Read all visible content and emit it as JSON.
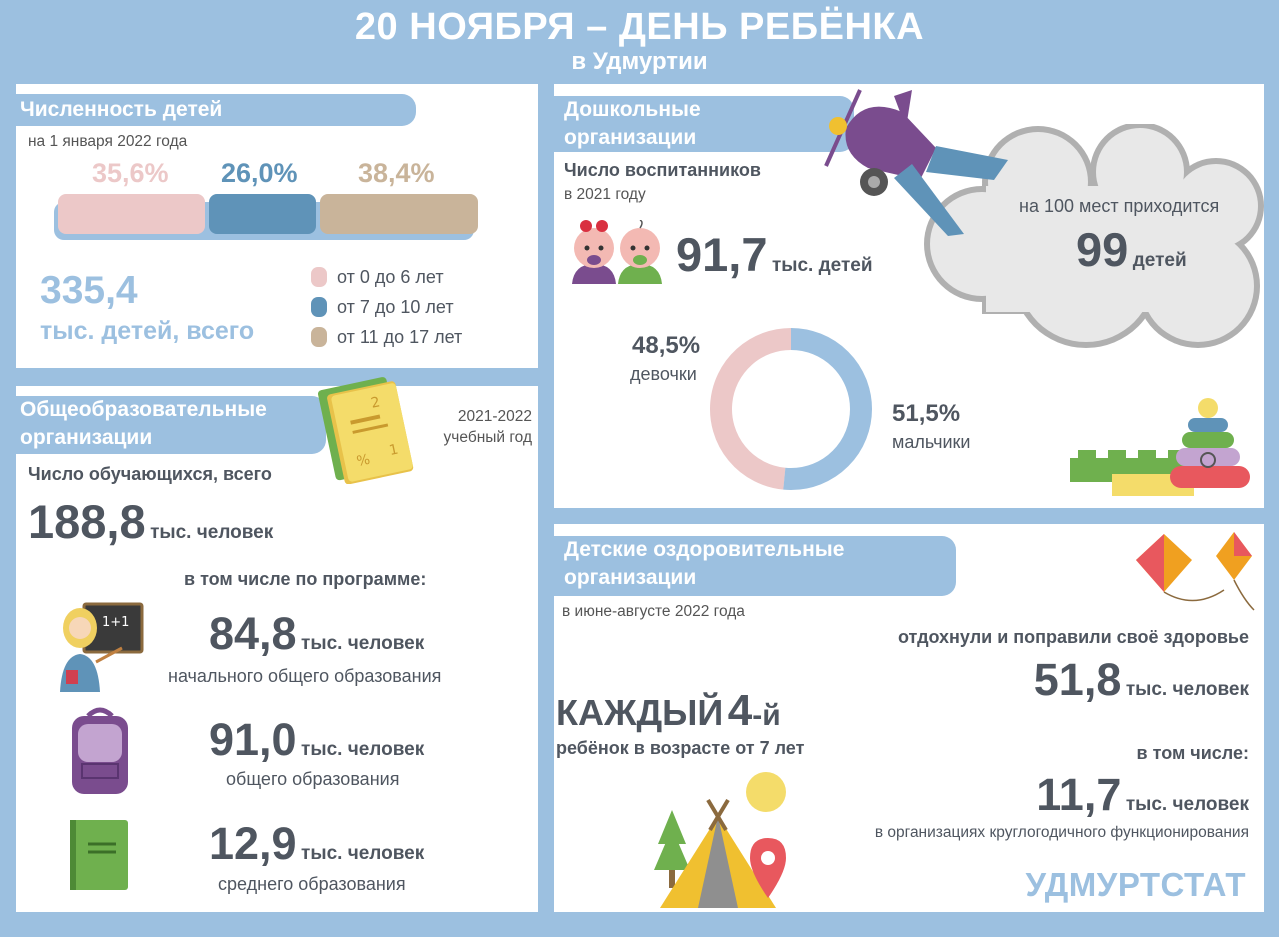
{
  "header": {
    "title": "20 НОЯБРЯ – ДЕНЬ РЕБЁНКА",
    "subtitle": "в Удмуртии"
  },
  "children_count": {
    "heading": "Численность детей",
    "date": "на 1 января 2022 года",
    "total_value": "335,4",
    "total_label": "тыс. детей, всего",
    "segments": [
      {
        "pct_label": "35,6%",
        "pct": 35.6,
        "color": "#ecc8c8",
        "legend": "от 0 до 6 лет"
      },
      {
        "pct_label": "26,0%",
        "pct": 26.0,
        "color": "#5f93b8",
        "legend": "от 7 до 10 лет"
      },
      {
        "pct_label": "38,4%",
        "pct": 38.4,
        "color": "#c9b49a",
        "legend": "от 11 до 17 лет"
      }
    ]
  },
  "schools": {
    "heading_line1": "Общеобразовательные",
    "heading_line2": "организации",
    "year_line1": "2021-2022",
    "year_line2": "учебный год",
    "students_label": "Число обучающихся, всего",
    "total_value": "188,8",
    "total_unit": "тыс. человек",
    "programs_label": "в том числе по программе:",
    "board_text": "1+1",
    "programs": [
      {
        "value": "84,8",
        "unit": "тыс. человек",
        "label": "начального общего образования"
      },
      {
        "value": "91,0",
        "unit": "тыс. человек",
        "label": "общего образования"
      },
      {
        "value": "12,9",
        "unit": "тыс. человек",
        "label": "среднего образования"
      }
    ]
  },
  "preschool": {
    "heading_line1": "Дошкольные",
    "heading_line2": "организации",
    "pupils_label": "Число воспитанников",
    "year": "в 2021 году",
    "value": "91,7",
    "unit": "тыс. детей",
    "places_label": "на 100 мест приходится",
    "places_value": "99",
    "places_unit": "детей",
    "girls_pct_label": "48,5%",
    "girls_label": "девочки",
    "boys_pct_label": "51,5%",
    "boys_label": "мальчики",
    "girls_pct": 48.5,
    "boys_pct": 51.5,
    "girls_color": "#ecc8c8",
    "boys_color": "#9cc0e0"
  },
  "health": {
    "heading_line1": "Детские оздоровительные",
    "heading_line2": "организации",
    "period": "в июне-августе 2022 года",
    "rested_label": "отдохнули  и поправили своё здоровье",
    "rested_value": "51,8",
    "rested_unit": "тыс. человек",
    "every_word": "КАЖДЫЙ",
    "every_num": "4",
    "every_suffix": "-й",
    "every_desc": "ребёнок в возрасте от 7 лет",
    "including_label": "в том числе:",
    "yearround_value": "11,7",
    "yearround_unit": "тыс. человек",
    "yearround_label": "в организациях круглогодичного функционирования"
  },
  "footer": {
    "brand": "УДМУРТСТАТ"
  }
}
